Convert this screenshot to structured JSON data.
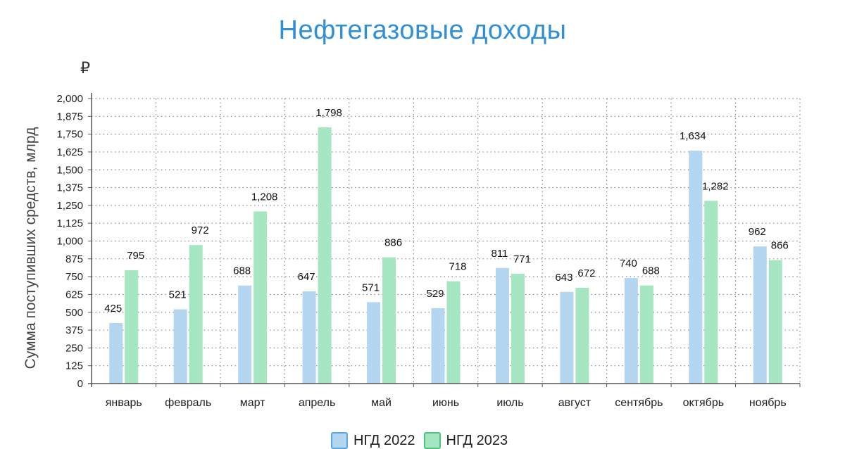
{
  "chart_data": {
    "type": "bar",
    "title": "Нефтегазовые доходы",
    "unit_symbol": "₽",
    "ylabel": "Сумма поступивших средств, млрд",
    "xlabel": "",
    "ylim": [
      0,
      2000
    ],
    "yticks": [
      0,
      125,
      250,
      375,
      500,
      625,
      750,
      875,
      1000,
      1125,
      1250,
      1375,
      1500,
      1625,
      1750,
      1875,
      2000
    ],
    "ytick_labels": [
      "0",
      "125",
      "250",
      "375",
      "500",
      "625",
      "750",
      "875",
      "1,000",
      "1,125",
      "1,250",
      "1,375",
      "1,500",
      "1,625",
      "1,750",
      "1,875",
      "2,000"
    ],
    "categories": [
      "январь",
      "февраль",
      "март",
      "апрель",
      "май",
      "июнь",
      "июль",
      "август",
      "сентябрь",
      "октябрь",
      "ноябрь"
    ],
    "series": [
      {
        "name": "НГД 2022",
        "color": "#b4d6f0",
        "values": [
          425,
          521,
          688,
          647,
          571,
          529,
          811,
          643,
          740,
          1634,
          962
        ],
        "labels": [
          "425",
          "521",
          "688",
          "647",
          "571",
          "529",
          "811",
          "643",
          "740",
          "1,634",
          "962"
        ]
      },
      {
        "name": "НГД 2023",
        "color": "#a6e6c2",
        "values": [
          795,
          972,
          1208,
          1798,
          886,
          718,
          771,
          672,
          688,
          1282,
          866
        ],
        "labels": [
          "795",
          "972",
          "1,208",
          "1,798",
          "886",
          "718",
          "771",
          "672",
          "688",
          "1,282",
          "866"
        ]
      }
    ],
    "grid": true,
    "legend_position": "bottom"
  }
}
